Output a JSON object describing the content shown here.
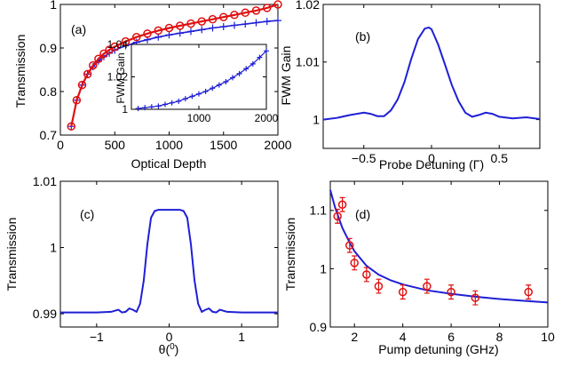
{
  "colors": {
    "blue": "#1f1fd6",
    "red": "#e01010"
  },
  "chart_data": [
    {
      "panel": "(a)",
      "type": "line",
      "xlabel": "Optical Depth",
      "ylabel": "Transmission",
      "xlim": [
        0,
        2000
      ],
      "ylim": [
        0.7,
        1.0
      ],
      "xticks": [
        0,
        500,
        1000,
        1500,
        2000
      ],
      "yticks": [
        0.7,
        0.8,
        0.9,
        1.0
      ],
      "ytick_labels": [
        "0.7",
        "0.8",
        "0.9",
        "1"
      ],
      "series": [
        {
          "style": "red-circles-line",
          "x": [
            100,
            150,
            200,
            250,
            300,
            350,
            400,
            450,
            500,
            600,
            700,
            800,
            900,
            1000,
            1100,
            1200,
            1300,
            1400,
            1500,
            1600,
            1700,
            1800,
            1900,
            2000
          ],
          "y": [
            0.72,
            0.78,
            0.815,
            0.84,
            0.86,
            0.875,
            0.887,
            0.896,
            0.903,
            0.915,
            0.925,
            0.933,
            0.94,
            0.946,
            0.951,
            0.956,
            0.961,
            0.966,
            0.971,
            0.976,
            0.981,
            0.986,
            0.992,
            1.0
          ]
        },
        {
          "style": "blue-cross",
          "x": [
            100,
            150,
            200,
            250,
            300,
            350,
            400,
            450,
            500,
            600,
            700,
            800,
            900,
            1000,
            1100,
            1200,
            1300,
            1400,
            1500,
            1600,
            1700,
            1800,
            1900,
            2000
          ],
          "y": [
            0.72,
            0.78,
            0.815,
            0.84,
            0.857,
            0.87,
            0.88,
            0.888,
            0.895,
            0.905,
            0.913,
            0.919,
            0.925,
            0.93,
            0.934,
            0.938,
            0.942,
            0.946,
            0.949,
            0.952,
            0.955,
            0.958,
            0.961,
            0.963
          ]
        }
      ],
      "inset": {
        "ylabel": "FWM Gain",
        "xlim": [
          0,
          2000
        ],
        "ylim": [
          1.0,
          1.04
        ],
        "xticks": [
          1000,
          2000
        ],
        "xtick_labels": [
          "1000",
          "2000"
        ],
        "yticks": [
          1.0,
          1.02,
          1.04
        ],
        "ytick_labels": [
          "1",
          "1.02",
          "1.04"
        ],
        "x": [
          100,
          200,
          300,
          400,
          500,
          600,
          700,
          800,
          900,
          1000,
          1100,
          1200,
          1300,
          1400,
          1500,
          1600,
          1700,
          1800,
          1900,
          2000
        ],
        "y": [
          1.0005,
          1.001,
          1.0015,
          1.002,
          1.003,
          1.004,
          1.005,
          1.0065,
          1.008,
          1.0095,
          1.011,
          1.013,
          1.015,
          1.017,
          1.0195,
          1.022,
          1.025,
          1.028,
          1.032,
          1.036
        ]
      }
    },
    {
      "panel": "(b)",
      "type": "line",
      "xlabel": "Probe Detuning (Γ)",
      "ylabel": "FWM Gain",
      "xlim": [
        -0.8,
        0.8
      ],
      "ylim": [
        0.995,
        1.02
      ],
      "xticks": [
        -0.5,
        0,
        0.5
      ],
      "xtick_labels": [
        "−0.5",
        "0",
        "0.5"
      ],
      "yticks": [
        1.0,
        1.01,
        1.02
      ],
      "ytick_labels": [
        "1",
        "1.01",
        "1.02"
      ],
      "x": [
        -0.8,
        -0.7,
        -0.6,
        -0.5,
        -0.45,
        -0.4,
        -0.35,
        -0.3,
        -0.25,
        -0.2,
        -0.15,
        -0.1,
        -0.05,
        -0.02,
        0.0,
        0.05,
        0.1,
        0.15,
        0.2,
        0.25,
        0.3,
        0.35,
        0.4,
        0.45,
        0.5,
        0.6,
        0.7,
        0.8
      ],
      "y": [
        1.0,
        1.0003,
        1.0008,
        1.0012,
        1.001,
        1.0006,
        1.0006,
        1.0016,
        1.0035,
        1.0065,
        1.0105,
        1.014,
        1.0158,
        1.016,
        1.0157,
        1.013,
        1.0095,
        1.006,
        1.0032,
        1.0012,
        1.0005,
        1.0008,
        1.0012,
        1.001,
        1.0005,
        1.0002,
        1.0004,
        1.0001
      ]
    },
    {
      "panel": "(c)",
      "type": "line",
      "xlabel": "θ(0)",
      "ylabel": "Transmission",
      "xlim": [
        -1.5,
        1.5
      ],
      "ylim": [
        0.988,
        1.01
      ],
      "xticks": [
        -1,
        0,
        1
      ],
      "xtick_labels": [
        "−1",
        "0",
        "1"
      ],
      "yticks": [
        0.99,
        1.0,
        1.01
      ],
      "ytick_labels": [
        "0.99",
        "1",
        "1.01"
      ],
      "x": [
        -1.5,
        -1.0,
        -0.8,
        -0.7,
        -0.65,
        -0.6,
        -0.55,
        -0.5,
        -0.45,
        -0.4,
        -0.35,
        -0.3,
        -0.25,
        -0.2,
        -0.15,
        0.0,
        0.15,
        0.2,
        0.25,
        0.3,
        0.35,
        0.4,
        0.45,
        0.5,
        0.55,
        0.6,
        0.65,
        0.7,
        0.8,
        1.0,
        1.5
      ],
      "y": [
        0.9902,
        0.9902,
        0.9903,
        0.9906,
        0.9902,
        0.9903,
        0.9908,
        0.9906,
        0.9903,
        0.9915,
        0.995,
        1.0005,
        1.0045,
        1.0055,
        1.0057,
        1.0057,
        1.0057,
        1.0055,
        1.0045,
        1.0005,
        0.995,
        0.9915,
        0.9903,
        0.9906,
        0.9908,
        0.9903,
        0.9902,
        0.9906,
        0.9903,
        0.9902,
        0.9902
      ]
    },
    {
      "panel": "(d)",
      "type": "scatter",
      "xlabel": "Pump detuning (GHz)",
      "ylabel": "Transmission",
      "xlim": [
        1,
        10
      ],
      "ylim": [
        0.9,
        1.15
      ],
      "xticks": [
        2,
        4,
        6,
        8,
        10
      ],
      "yticks": [
        0.9,
        1.0,
        1.1
      ],
      "ytick_labels": [
        "0.9",
        "1",
        "1.1"
      ],
      "points": {
        "x": [
          1.3,
          1.5,
          1.8,
          2.0,
          2.5,
          3.0,
          4.0,
          5.0,
          6.0,
          7.0,
          9.2
        ],
        "y": [
          1.09,
          1.11,
          1.04,
          1.01,
          0.99,
          0.97,
          0.96,
          0.97,
          0.96,
          0.95,
          0.96
        ],
        "err": [
          0.012,
          0.012,
          0.012,
          0.012,
          0.012,
          0.012,
          0.012,
          0.012,
          0.012,
          0.012,
          0.012
        ]
      },
      "fit": {
        "x": [
          1.0,
          1.2,
          1.5,
          1.8,
          2.0,
          2.5,
          3.0,
          3.5,
          4.0,
          5.0,
          6.0,
          7.0,
          8.0,
          9.0,
          10.0
        ],
        "y": [
          1.135,
          1.105,
          1.07,
          1.045,
          1.03,
          1.005,
          0.99,
          0.98,
          0.973,
          0.963,
          0.957,
          0.952,
          0.948,
          0.945,
          0.942
        ]
      }
    }
  ]
}
